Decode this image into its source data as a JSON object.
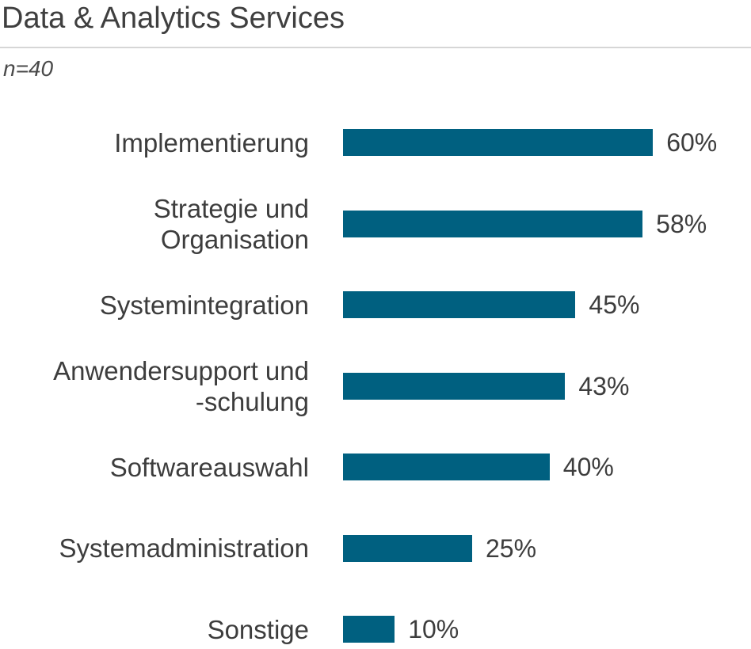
{
  "title": "Data & Analytics Services",
  "subtitle": "n=40",
  "chart_data": {
    "type": "bar",
    "orientation": "horizontal",
    "categories": [
      "Implementierung",
      "Strategie und\nOrganisation",
      "Systemintegration",
      "Anwendersupport und\n-schulung",
      "Softwareauswahl",
      "Systemadministration",
      "Sonstige"
    ],
    "values": [
      60,
      58,
      45,
      43,
      40,
      25,
      10
    ],
    "value_labels": [
      "60%",
      "58%",
      "45%",
      "43%",
      "40%",
      "25%",
      "10%"
    ],
    "unit": "%",
    "bar_color": "#006080",
    "grid": false,
    "legend": "none"
  }
}
